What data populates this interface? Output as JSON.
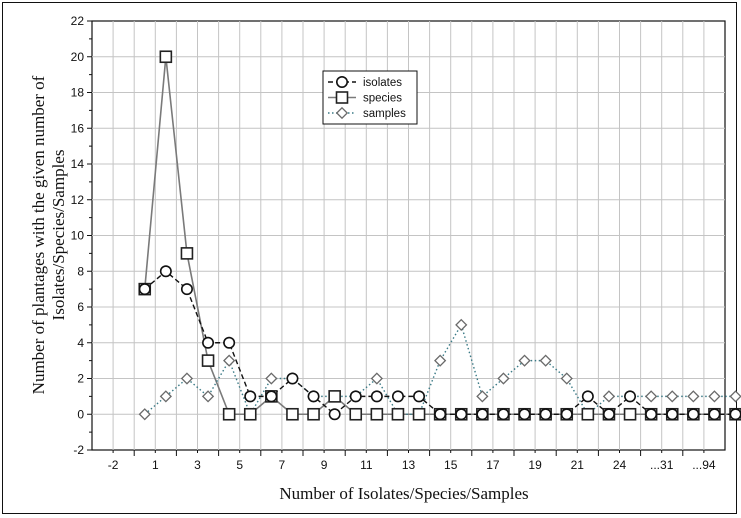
{
  "chart_data": {
    "type": "line",
    "xlabel": "Number of Isolates/Species/Samples",
    "ylabel_line1": "Number of plantages with the given number of",
    "ylabel_line2": "Isolates/Species/Samples",
    "ylim": [
      -2,
      22
    ],
    "yticks": [
      -2,
      0,
      2,
      4,
      6,
      8,
      10,
      12,
      14,
      16,
      18,
      20,
      22
    ],
    "x_tick_labels": [
      "-2",
      "1",
      "3",
      "5",
      "7",
      "9",
      "11",
      "13",
      "15",
      "17",
      "19",
      "21",
      "24",
      "...31",
      "...94"
    ],
    "grid": true,
    "legend_position": "upper-center",
    "x": [
      "0",
      "1",
      "2",
      "3",
      "4",
      "5",
      "6",
      "7",
      "8",
      "9",
      "10",
      "11",
      "12",
      "13",
      "14",
      "15",
      "16",
      "17",
      "18",
      "19",
      "20",
      "21",
      "22",
      "24",
      "25",
      "...",
      "31",
      "...",
      "94"
    ],
    "series": [
      {
        "name": "isolates",
        "marker": "circle",
        "line_style": "dashed",
        "values": [
          7,
          8,
          7,
          4,
          4,
          1,
          1,
          2,
          1,
          0,
          1,
          1,
          1,
          1,
          0,
          0,
          0,
          0,
          0,
          0,
          0,
          1,
          0,
          1,
          0,
          0,
          0,
          0,
          0
        ]
      },
      {
        "name": "species",
        "marker": "square",
        "line_style": "solid",
        "values": [
          7,
          20,
          9,
          3,
          0,
          0,
          1,
          0,
          0,
          1,
          0,
          0,
          0,
          0,
          0,
          0,
          0,
          0,
          0,
          0,
          0,
          0,
          0,
          0,
          0,
          0,
          0,
          0,
          0
        ]
      },
      {
        "name": "samples",
        "marker": "diamond",
        "line_style": "dotted",
        "values": [
          0,
          1,
          2,
          1,
          3,
          0,
          2,
          2,
          1,
          1,
          1,
          2,
          0,
          0,
          3,
          5,
          1,
          2,
          3,
          3,
          2,
          0,
          1,
          1,
          1,
          1,
          1,
          1,
          1
        ]
      }
    ]
  }
}
